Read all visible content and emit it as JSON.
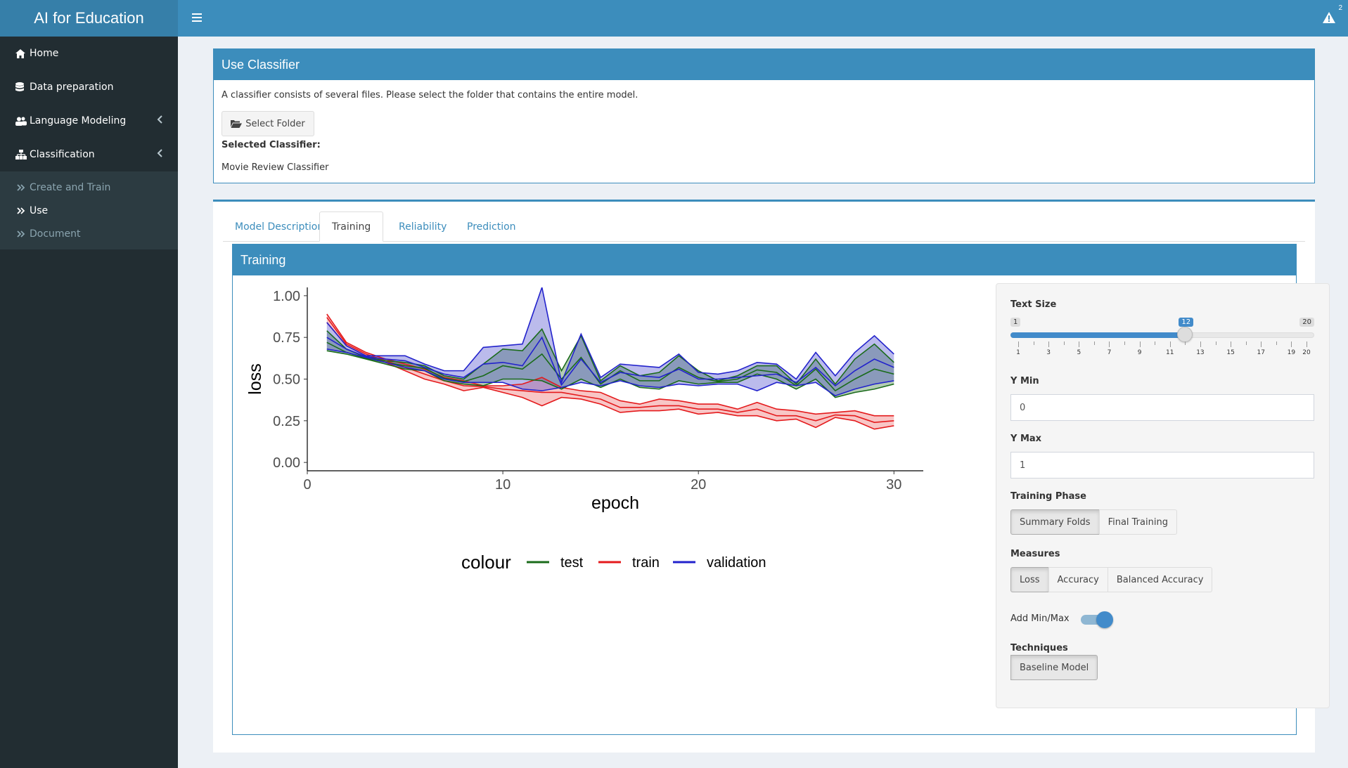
{
  "app": {
    "title": "AI for Education"
  },
  "header": {
    "menu_toggle_icon": "bars-icon",
    "alert_icon": "warning-icon",
    "alert_count": "2"
  },
  "sidebar": {
    "items": [
      {
        "label": "Home",
        "icon": "home-icon"
      },
      {
        "label": "Data preparation",
        "icon": "database-icon"
      },
      {
        "label": "Language Modeling",
        "icon": "users-icon"
      },
      {
        "label": "Classification",
        "icon": "sitemap-icon"
      }
    ],
    "submenu": [
      {
        "label": "Create and Train"
      },
      {
        "label": "Use"
      },
      {
        "label": "Document"
      }
    ]
  },
  "use_classifier": {
    "title": "Use Classifier",
    "description": "A classifier consists of several files. Please select the folder that contains the entire model.",
    "select_button": "Select Folder",
    "selected_label": "Selected Classifier:",
    "selected_value": "Movie Review Classifier"
  },
  "tabs": [
    {
      "label": "Model Description"
    },
    {
      "label": "Training",
      "active": true
    },
    {
      "label": "Reliability"
    },
    {
      "label": "Prediction"
    }
  ],
  "training": {
    "title": "Training",
    "controls": {
      "text_size": {
        "label": "Text Size",
        "min": 1,
        "max": 20,
        "value": 12,
        "tick_labels": [
          "1",
          "3",
          "5",
          "7",
          "9",
          "11",
          "13",
          "15",
          "17",
          "19",
          "20"
        ]
      },
      "y_min": {
        "label": "Y Min",
        "value": "0"
      },
      "y_max": {
        "label": "Y Max",
        "value": "1"
      },
      "training_phase": {
        "label": "Training Phase",
        "options": [
          "Summary Folds",
          "Final Training"
        ],
        "selected": "Summary Folds"
      },
      "measures": {
        "label": "Measures",
        "options": [
          "Loss",
          "Accuracy",
          "Balanced Accuracy"
        ],
        "selected": "Loss"
      },
      "add_min_max": {
        "label": "Add Min/Max",
        "value": true
      },
      "techniques": {
        "label": "Techniques",
        "options": [
          "Baseline Model"
        ],
        "selected": "Baseline Model"
      }
    }
  },
  "chart_data": {
    "type": "line",
    "xlabel": "epoch",
    "ylabel": "loss",
    "xlim": [
      0,
      31.5
    ],
    "ylim": [
      -0.05,
      1.05
    ],
    "xticks": [
      0,
      10,
      20,
      30
    ],
    "yticks": [
      0.0,
      0.25,
      0.5,
      0.75,
      1.0
    ],
    "ytick_labels": [
      "0.00",
      "0.25",
      "0.50",
      "0.75",
      "1.00"
    ],
    "legend": {
      "title": "colour",
      "position": "bottom",
      "entries": [
        "test",
        "train",
        "validation"
      ]
    },
    "x": [
      1,
      2,
      3,
      4,
      5,
      6,
      7,
      8,
      9,
      10,
      11,
      12,
      13,
      14,
      15,
      16,
      17,
      18,
      19,
      20,
      21,
      22,
      23,
      24,
      25,
      26,
      27,
      28,
      29,
      30
    ],
    "series": [
      {
        "name": "train",
        "color": "#e41a1c",
        "fill": "rgba(228,26,28,0.25)",
        "min": [
          0.84,
          0.7,
          0.64,
          0.6,
          0.55,
          0.5,
          0.47,
          0.43,
          0.45,
          0.42,
          0.39,
          0.34,
          0.39,
          0.38,
          0.35,
          0.3,
          0.31,
          0.31,
          0.32,
          0.29,
          0.3,
          0.28,
          0.28,
          0.25,
          0.26,
          0.21,
          0.27,
          0.25,
          0.2,
          0.22
        ],
        "max": [
          0.89,
          0.72,
          0.66,
          0.62,
          0.59,
          0.56,
          0.51,
          0.49,
          0.46,
          0.46,
          0.47,
          0.51,
          0.45,
          0.43,
          0.42,
          0.37,
          0.35,
          0.38,
          0.37,
          0.35,
          0.35,
          0.32,
          0.36,
          0.32,
          0.31,
          0.29,
          0.3,
          0.31,
          0.28,
          0.28
        ],
        "values": [
          0.87,
          0.71,
          0.65,
          0.61,
          0.57,
          0.53,
          0.49,
          0.46,
          0.455,
          0.44,
          0.43,
          0.42,
          0.42,
          0.4,
          0.38,
          0.33,
          0.33,
          0.34,
          0.34,
          0.32,
          0.32,
          0.3,
          0.32,
          0.28,
          0.28,
          0.25,
          0.285,
          0.28,
          0.24,
          0.25
        ]
      },
      {
        "name": "test",
        "color": "#1a6b1a",
        "fill": "rgba(40,110,40,0.35)",
        "min": [
          0.67,
          0.65,
          0.62,
          0.59,
          0.56,
          0.55,
          0.49,
          0.47,
          0.46,
          0.5,
          0.5,
          0.49,
          0.44,
          0.5,
          0.45,
          0.5,
          0.45,
          0.44,
          0.49,
          0.47,
          0.48,
          0.48,
          0.53,
          0.5,
          0.44,
          0.5,
          0.39,
          0.42,
          0.44,
          0.47
        ],
        "max": [
          0.79,
          0.68,
          0.63,
          0.61,
          0.6,
          0.58,
          0.52,
          0.5,
          0.59,
          0.68,
          0.67,
          0.8,
          0.55,
          0.76,
          0.49,
          0.58,
          0.52,
          0.54,
          0.64,
          0.55,
          0.49,
          0.52,
          0.58,
          0.58,
          0.47,
          0.62,
          0.47,
          0.62,
          0.71,
          0.6
        ],
        "values": [
          0.72,
          0.66,
          0.625,
          0.6,
          0.58,
          0.565,
          0.505,
          0.485,
          0.52,
          0.58,
          0.56,
          0.65,
          0.5,
          0.63,
          0.47,
          0.55,
          0.49,
          0.49,
          0.57,
          0.51,
          0.485,
          0.5,
          0.555,
          0.54,
          0.46,
          0.56,
          0.43,
          0.5,
          0.56,
          0.53
        ]
      },
      {
        "name": "validation",
        "color": "#2222cc",
        "fill": "rgba(60,60,200,0.35)",
        "min": [
          0.68,
          0.66,
          0.63,
          0.6,
          0.57,
          0.55,
          0.5,
          0.48,
          0.48,
          0.48,
          0.44,
          0.43,
          0.45,
          0.48,
          0.46,
          0.49,
          0.46,
          0.45,
          0.47,
          0.46,
          0.47,
          0.47,
          0.43,
          0.48,
          0.46,
          0.48,
          0.4,
          0.44,
          0.47,
          0.49
        ],
        "max": [
          0.84,
          0.7,
          0.64,
          0.64,
          0.64,
          0.59,
          0.55,
          0.55,
          0.69,
          0.7,
          0.71,
          1.05,
          0.48,
          0.77,
          0.51,
          0.59,
          0.58,
          0.57,
          0.65,
          0.54,
          0.53,
          0.55,
          0.6,
          0.59,
          0.5,
          0.66,
          0.52,
          0.66,
          0.76,
          0.65
        ],
        "values": [
          0.75,
          0.68,
          0.635,
          0.62,
          0.61,
          0.57,
          0.53,
          0.51,
          0.59,
          0.6,
          0.58,
          0.75,
          0.465,
          0.62,
          0.48,
          0.54,
          0.52,
          0.51,
          0.56,
          0.5,
          0.5,
          0.51,
          0.52,
          0.53,
          0.48,
          0.57,
          0.46,
          0.55,
          0.62,
          0.57
        ]
      }
    ]
  }
}
